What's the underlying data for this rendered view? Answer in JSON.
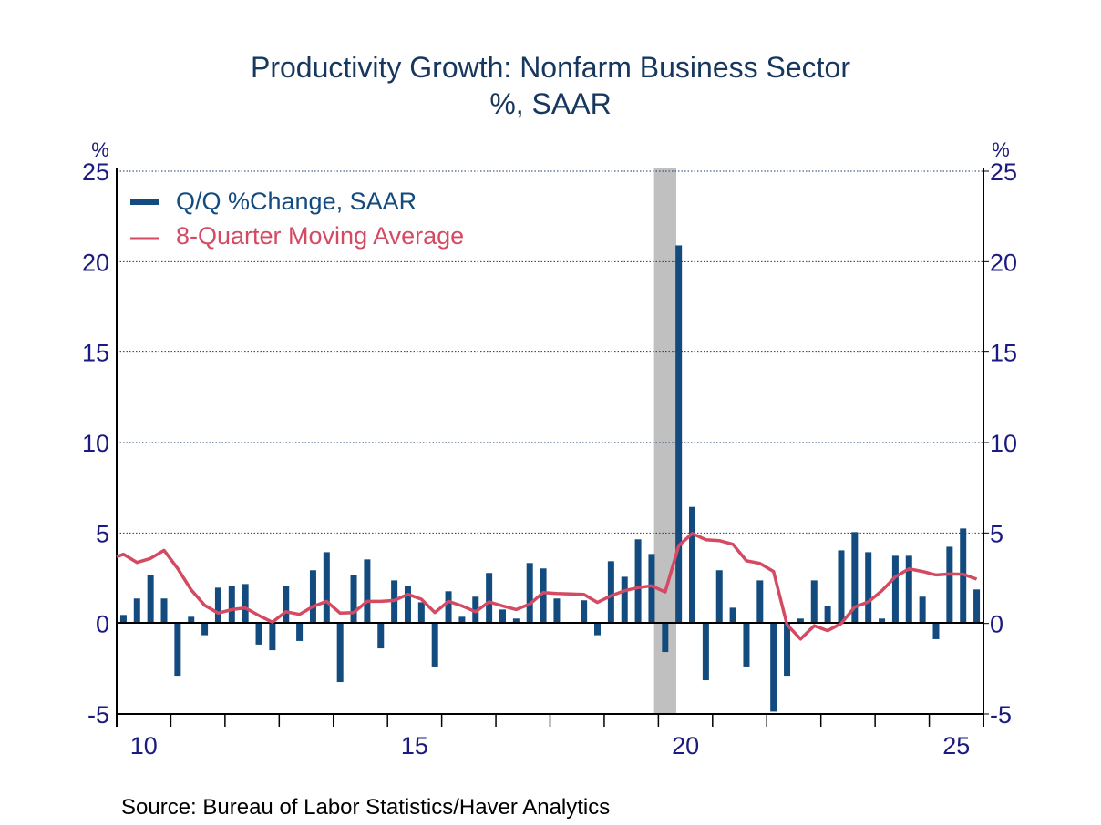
{
  "chart_data": {
    "type": "bar",
    "title": "Productivity Growth: Nonfarm Business Sector",
    "subtitle": "%, SAAR",
    "ylabel_left": "%",
    "ylabel_right": "%",
    "ylim": [
      -5,
      25
    ],
    "yticks": [
      "-5",
      "0",
      "5",
      "10",
      "15",
      "20",
      "25"
    ],
    "xticks": [
      {
        "label": "10",
        "year": 2010
      },
      {
        "label": "15",
        "year": 2015
      },
      {
        "label": "20",
        "year": 2020
      },
      {
        "label": "25",
        "year": 2025
      }
    ],
    "xlim": [
      2010,
      2026
    ],
    "grid": "horizontal dotted",
    "legend_placement": "top-left",
    "recession": {
      "start": 2019.92,
      "end": 2020.33,
      "color": "#c0c0c0"
    },
    "start_quarter": "2010Q1",
    "series": [
      {
        "name": "Q/Q %Change, SAAR",
        "kind": "bar",
        "color": "#134b7f",
        "values": [
          0.47,
          1.38,
          2.68,
          1.38,
          -2.89,
          0.37,
          -0.65,
          1.98,
          2.08,
          2.18,
          -1.17,
          -1.48,
          2.08,
          -0.97,
          2.94,
          3.94,
          -3.24,
          2.68,
          3.54,
          -1.38,
          2.38,
          2.08,
          1.17,
          -2.38,
          1.78,
          0.37,
          1.48,
          2.79,
          0.77,
          0.27,
          3.34,
          3.04,
          1.38,
          0.07,
          1.28,
          -0.65,
          3.44,
          2.58,
          4.65,
          3.84,
          -1.58,
          20.9,
          6.44,
          -3.14,
          2.94,
          0.87,
          -2.38,
          2.38,
          -4.87,
          -2.89,
          0.27,
          2.38,
          0.97,
          4.04,
          5.05,
          3.94,
          0.27,
          3.74,
          3.74,
          1.48,
          -0.87,
          4.24,
          5.25,
          1.88
        ]
      },
      {
        "name": "8-Quarter Moving Average",
        "kind": "line",
        "color": "#d44a62",
        "values": [
          3.83,
          3.37,
          3.59,
          4.04,
          3.04,
          1.86,
          1.0,
          0.57,
          0.77,
          0.86,
          0.44,
          0.07,
          0.65,
          0.5,
          0.94,
          1.22,
          0.57,
          0.6,
          1.22,
          1.22,
          1.27,
          1.61,
          1.34,
          0.6,
          1.22,
          0.97,
          0.65,
          1.19,
          0.97,
          0.77,
          1.07,
          1.71,
          1.66,
          1.63,
          1.61,
          1.16,
          1.53,
          1.81,
          1.98,
          2.08,
          1.74,
          4.3,
          4.97,
          4.63,
          4.58,
          4.38,
          3.46,
          3.32,
          2.87,
          -0.07,
          -0.86,
          -0.13,
          -0.4,
          0.0,
          0.91,
          1.19,
          1.81,
          2.58,
          3.02,
          2.87,
          2.68,
          2.73,
          2.72,
          2.45
        ]
      }
    ],
    "source": "Source:  Bureau of Labor Statistics/Haver Analytics"
  }
}
